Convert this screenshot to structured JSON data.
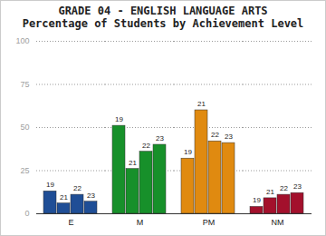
{
  "chart_data": {
    "type": "bar",
    "title": "GRADE 04 - ENGLISH LANGUAGE ARTS",
    "subtitle": "Percentage of Students by Achievement Level",
    "categories": [
      "E",
      "M",
      "PM",
      "NM"
    ],
    "colors": [
      "#1f4e96",
      "#17902a",
      "#e08a10",
      "#a3102c"
    ],
    "series": [
      {
        "name": "19",
        "values": [
          13,
          51,
          32,
          4
        ]
      },
      {
        "name": "21",
        "values": [
          6,
          26,
          60,
          9
        ]
      },
      {
        "name": "22",
        "values": [
          11,
          36,
          42,
          11
        ]
      },
      {
        "name": "23",
        "values": [
          7,
          40,
          41,
          12
        ]
      }
    ],
    "ylim": [
      0,
      100
    ],
    "yticks": [
      0,
      25,
      50,
      75,
      100
    ],
    "grid": true
  }
}
